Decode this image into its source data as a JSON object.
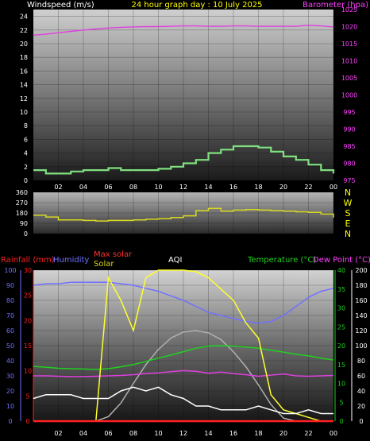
{
  "header": {
    "left_label": "Windspeed (m/s)",
    "title": "24 hour graph day : 10 July 2025",
    "right_label": "Barometer (hpa)"
  },
  "x_ticks": [
    "02",
    "04",
    "06",
    "08",
    "10",
    "12",
    "14",
    "16",
    "18",
    "20",
    "22",
    "00"
  ],
  "direction_letters": [
    "N",
    "W",
    "S",
    "E",
    "N"
  ],
  "bottom_header": {
    "rainfall": "Rainfall (mm)",
    "humidity": "Humidity",
    "max_solar": "Max solar",
    "solar": "Solar",
    "aqi": "AQI",
    "temperature": "Temperature (°C)",
    "dewpoint": "Dew Point (°C)"
  },
  "colors": {
    "wind": "#7fe07f",
    "barometer": "#e040e0",
    "direction": "#d8d820",
    "rainfall": "#ff2020",
    "humidity": "#7070ff",
    "solar": "#ffff30",
    "max_solar": "#b0b0b0",
    "aqi": "#ffffff",
    "temperature": "#20d020",
    "dewpoint": "#e040e0",
    "label_yellow": "#ffff00",
    "label_magenta": "#ff40ff"
  },
  "chart_data": [
    {
      "type": "line",
      "panel": "wind-barometer",
      "title": "24 hour graph day : 10 July 2025",
      "x": [
        0,
        1,
        2,
        3,
        4,
        5,
        6,
        7,
        8,
        9,
        10,
        11,
        12,
        13,
        14,
        15,
        16,
        17,
        18,
        19,
        20,
        21,
        22,
        23,
        24
      ],
      "series": [
        {
          "name": "Windspeed (m/s)",
          "axis": "left",
          "values": [
            1.5,
            1.0,
            1.0,
            1.3,
            1.5,
            1.5,
            1.8,
            1.5,
            1.5,
            1.5,
            1.7,
            2.0,
            2.5,
            3.0,
            4.0,
            4.5,
            5.0,
            5.0,
            4.8,
            4.2,
            3.5,
            3.0,
            2.3,
            1.5,
            1.0
          ]
        },
        {
          "name": "Barometer (hpa)",
          "axis": "right",
          "values": [
            1017.5,
            1017.8,
            1018.2,
            1018.6,
            1019.0,
            1019.3,
            1019.6,
            1019.8,
            1019.9,
            1020.0,
            1020.0,
            1020.1,
            1020.2,
            1020.2,
            1020.1,
            1020.1,
            1020.2,
            1020.2,
            1020.1,
            1020.1,
            1020.1,
            1020.1,
            1020.4,
            1020.2,
            1019.9
          ]
        }
      ],
      "ylim_left": [
        0,
        25
      ],
      "yticks_left": [
        0,
        2,
        4,
        6,
        8,
        10,
        12,
        14,
        16,
        18,
        20,
        22,
        24
      ],
      "ylim_right": [
        975,
        1025
      ],
      "yticks_right": [
        975,
        980,
        985,
        990,
        995,
        1000,
        1005,
        1010,
        1015,
        1020,
        1025
      ]
    },
    {
      "type": "line",
      "panel": "wind-direction",
      "x": [
        0,
        1,
        2,
        3,
        4,
        5,
        6,
        7,
        8,
        9,
        10,
        11,
        12,
        13,
        14,
        15,
        16,
        17,
        18,
        19,
        20,
        21,
        22,
        23,
        24
      ],
      "series": [
        {
          "name": "Wind direction",
          "values": [
            160,
            145,
            120,
            120,
            115,
            110,
            115,
            115,
            120,
            125,
            130,
            140,
            155,
            200,
            220,
            195,
            205,
            210,
            205,
            200,
            195,
            190,
            185,
            170,
            140
          ]
        }
      ],
      "ylim": [
        0,
        360
      ],
      "yticks": [
        0,
        90,
        180,
        270,
        360
      ]
    },
    {
      "type": "line",
      "panel": "rain-humidity-solar-temperature",
      "x": [
        0,
        1,
        2,
        3,
        4,
        5,
        6,
        7,
        8,
        9,
        10,
        11,
        12,
        13,
        14,
        15,
        16,
        17,
        18,
        19,
        20,
        21,
        22,
        23,
        24
      ],
      "series": [
        {
          "name": "Rainfall (mm)",
          "axis": "rain",
          "values": [
            0,
            0,
            0,
            0,
            0,
            0,
            0,
            0,
            0,
            0,
            0,
            0,
            0,
            0,
            0,
            0,
            0,
            0,
            0,
            0,
            0,
            0,
            0,
            0,
            0
          ]
        },
        {
          "name": "Humidity",
          "axis": "humidity",
          "values": [
            90,
            91,
            91,
            92,
            92,
            92,
            92,
            91,
            90,
            88,
            86,
            83,
            80,
            76,
            72,
            70,
            68,
            66,
            65,
            66,
            70,
            76,
            82,
            86,
            88
          ]
        },
        {
          "name": "Max solar",
          "axis": "solar",
          "values": [
            0,
            0,
            0,
            0,
            0,
            0,
            6,
            24,
            50,
            75,
            95,
            110,
            118,
            120,
            117,
            108,
            92,
            72,
            48,
            22,
            4,
            0,
            0,
            0,
            0
          ]
        },
        {
          "name": "Solar",
          "axis": "solar",
          "values": [
            0,
            0,
            0,
            0,
            0,
            0,
            190,
            160,
            120,
            190,
            200,
            200,
            200,
            198,
            190,
            175,
            160,
            130,
            110,
            35,
            15,
            10,
            5,
            0,
            0
          ]
        },
        {
          "name": "AQI",
          "axis": "temp",
          "values": [
            6,
            7,
            7,
            7,
            6,
            6,
            6,
            8,
            9,
            8,
            9,
            7,
            6,
            4,
            4,
            3,
            3,
            3,
            4,
            3,
            2,
            2,
            3,
            2,
            2
          ]
        },
        {
          "name": "Temperature (°C)",
          "axis": "temp",
          "values": [
            14.5,
            14.3,
            14.0,
            13.9,
            13.8,
            13.7,
            13.9,
            14.4,
            15.0,
            15.8,
            16.7,
            17.5,
            18.4,
            19.3,
            19.9,
            20.0,
            19.9,
            19.6,
            19.3,
            18.8,
            18.3,
            17.7,
            17.3,
            16.7,
            16.2
          ]
        },
        {
          "name": "Dew Point (°C)",
          "axis": "temp",
          "values": [
            12.0,
            12.0,
            11.9,
            11.8,
            11.8,
            11.9,
            12.0,
            12.1,
            12.3,
            12.6,
            12.8,
            13.1,
            13.4,
            13.2,
            12.7,
            13.0,
            12.6,
            12.3,
            11.9,
            12.2,
            12.5,
            12.0,
            11.9,
            12.0,
            12.1
          ]
        }
      ],
      "ylim_humidity": [
        0,
        100
      ],
      "yticks_humidity": [
        0,
        10,
        20,
        30,
        40,
        50,
        60,
        70,
        80,
        90,
        100
      ],
      "ylim_rain": [
        0,
        30
      ],
      "yticks_rain": [
        0,
        5,
        10,
        15,
        20,
        25,
        30
      ],
      "ylim_temp": [
        0,
        40
      ],
      "yticks_temp": [
        0,
        5,
        10,
        15,
        20,
        25,
        30,
        35,
        40
      ],
      "ylim_solar": [
        0,
        200
      ],
      "yticks_solar": [
        0,
        20,
        40,
        60,
        80,
        100,
        120,
        140,
        160,
        180,
        200
      ]
    }
  ]
}
